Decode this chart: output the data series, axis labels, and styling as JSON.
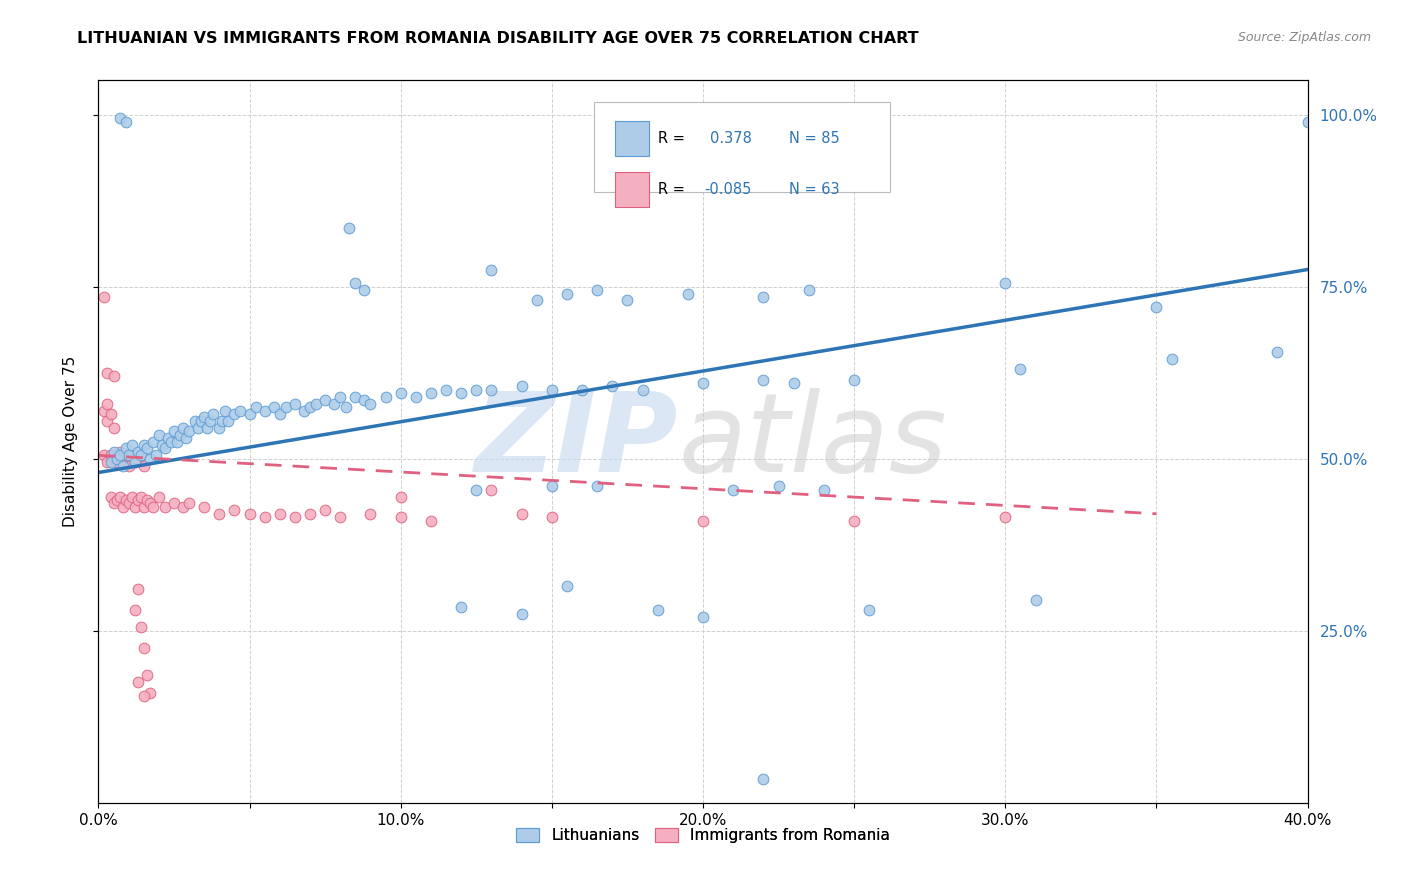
{
  "title": "LITHUANIAN VS IMMIGRANTS FROM ROMANIA DISABILITY AGE OVER 75 CORRELATION CHART",
  "source": "Source: ZipAtlas.com",
  "ylabel": "Disability Age Over 75",
  "legend_labels": [
    "Lithuanians",
    "Immigrants from Romania"
  ],
  "blue_color": "#aecce8",
  "blue_edge": "#5b9bd5",
  "pink_color": "#f4afc0",
  "pink_edge": "#e06080",
  "trendline_blue": "#2e75b6",
  "trendline_pink": "#e06080",
  "legend_text_color": "#2e75b6",
  "watermark_zip_color": "#c5d8ef",
  "watermark_atlas_color": "#c8c8c8",
  "blue_scatter": [
    [
      0.004,
      0.495
    ],
    [
      0.005,
      0.51
    ],
    [
      0.006,
      0.5
    ],
    [
      0.007,
      0.505
    ],
    [
      0.008,
      0.49
    ],
    [
      0.009,
      0.515
    ],
    [
      0.01,
      0.505
    ],
    [
      0.011,
      0.52
    ],
    [
      0.012,
      0.495
    ],
    [
      0.013,
      0.51
    ],
    [
      0.014,
      0.505
    ],
    [
      0.015,
      0.52
    ],
    [
      0.016,
      0.515
    ],
    [
      0.017,
      0.5
    ],
    [
      0.018,
      0.525
    ],
    [
      0.019,
      0.505
    ],
    [
      0.02,
      0.535
    ],
    [
      0.021,
      0.52
    ],
    [
      0.022,
      0.515
    ],
    [
      0.023,
      0.53
    ],
    [
      0.024,
      0.525
    ],
    [
      0.025,
      0.54
    ],
    [
      0.026,
      0.525
    ],
    [
      0.027,
      0.535
    ],
    [
      0.028,
      0.545
    ],
    [
      0.029,
      0.53
    ],
    [
      0.03,
      0.54
    ],
    [
      0.032,
      0.555
    ],
    [
      0.033,
      0.545
    ],
    [
      0.034,
      0.555
    ],
    [
      0.035,
      0.56
    ],
    [
      0.036,
      0.545
    ],
    [
      0.037,
      0.555
    ],
    [
      0.038,
      0.565
    ],
    [
      0.04,
      0.545
    ],
    [
      0.041,
      0.555
    ],
    [
      0.042,
      0.57
    ],
    [
      0.043,
      0.555
    ],
    [
      0.045,
      0.565
    ],
    [
      0.047,
      0.57
    ],
    [
      0.05,
      0.565
    ],
    [
      0.052,
      0.575
    ],
    [
      0.055,
      0.57
    ],
    [
      0.058,
      0.575
    ],
    [
      0.06,
      0.565
    ],
    [
      0.062,
      0.575
    ],
    [
      0.065,
      0.58
    ],
    [
      0.068,
      0.57
    ],
    [
      0.07,
      0.575
    ],
    [
      0.072,
      0.58
    ],
    [
      0.075,
      0.585
    ],
    [
      0.078,
      0.58
    ],
    [
      0.08,
      0.59
    ],
    [
      0.082,
      0.575
    ],
    [
      0.085,
      0.59
    ],
    [
      0.088,
      0.585
    ],
    [
      0.09,
      0.58
    ],
    [
      0.095,
      0.59
    ],
    [
      0.1,
      0.595
    ],
    [
      0.105,
      0.59
    ],
    [
      0.11,
      0.595
    ],
    [
      0.115,
      0.6
    ],
    [
      0.12,
      0.595
    ],
    [
      0.125,
      0.6
    ],
    [
      0.13,
      0.6
    ],
    [
      0.14,
      0.605
    ],
    [
      0.15,
      0.6
    ],
    [
      0.16,
      0.6
    ],
    [
      0.17,
      0.605
    ],
    [
      0.18,
      0.6
    ],
    [
      0.2,
      0.61
    ],
    [
      0.22,
      0.615
    ],
    [
      0.23,
      0.61
    ],
    [
      0.25,
      0.615
    ],
    [
      0.007,
      0.995
    ],
    [
      0.009,
      0.99
    ],
    [
      0.083,
      0.835
    ],
    [
      0.085,
      0.755
    ],
    [
      0.088,
      0.745
    ],
    [
      0.13,
      0.775
    ],
    [
      0.145,
      0.73
    ],
    [
      0.155,
      0.74
    ],
    [
      0.165,
      0.745
    ],
    [
      0.175,
      0.73
    ],
    [
      0.195,
      0.74
    ],
    [
      0.22,
      0.735
    ],
    [
      0.235,
      0.745
    ],
    [
      0.125,
      0.455
    ],
    [
      0.15,
      0.46
    ],
    [
      0.165,
      0.46
    ],
    [
      0.21,
      0.455
    ],
    [
      0.225,
      0.46
    ],
    [
      0.24,
      0.455
    ],
    [
      0.12,
      0.285
    ],
    [
      0.14,
      0.275
    ],
    [
      0.155,
      0.315
    ],
    [
      0.185,
      0.28
    ],
    [
      0.2,
      0.27
    ],
    [
      0.255,
      0.28
    ],
    [
      0.31,
      0.295
    ],
    [
      0.22,
      0.035
    ],
    [
      0.3,
      0.755
    ],
    [
      0.35,
      0.72
    ],
    [
      0.305,
      0.63
    ],
    [
      0.355,
      0.645
    ],
    [
      0.39,
      0.655
    ],
    [
      0.4,
      0.99
    ]
  ],
  "pink_scatter": [
    [
      0.002,
      0.505
    ],
    [
      0.003,
      0.495
    ],
    [
      0.004,
      0.505
    ],
    [
      0.005,
      0.5
    ],
    [
      0.006,
      0.495
    ],
    [
      0.007,
      0.51
    ],
    [
      0.008,
      0.495
    ],
    [
      0.009,
      0.505
    ],
    [
      0.01,
      0.49
    ],
    [
      0.011,
      0.505
    ],
    [
      0.012,
      0.495
    ],
    [
      0.013,
      0.5
    ],
    [
      0.014,
      0.505
    ],
    [
      0.015,
      0.49
    ],
    [
      0.002,
      0.57
    ],
    [
      0.003,
      0.555
    ],
    [
      0.004,
      0.565
    ],
    [
      0.005,
      0.545
    ],
    [
      0.002,
      0.735
    ],
    [
      0.003,
      0.625
    ],
    [
      0.005,
      0.62
    ],
    [
      0.003,
      0.58
    ],
    [
      0.004,
      0.445
    ],
    [
      0.005,
      0.435
    ],
    [
      0.006,
      0.44
    ],
    [
      0.007,
      0.445
    ],
    [
      0.008,
      0.43
    ],
    [
      0.009,
      0.44
    ],
    [
      0.01,
      0.435
    ],
    [
      0.011,
      0.445
    ],
    [
      0.012,
      0.43
    ],
    [
      0.013,
      0.44
    ],
    [
      0.014,
      0.445
    ],
    [
      0.015,
      0.43
    ],
    [
      0.016,
      0.44
    ],
    [
      0.017,
      0.435
    ],
    [
      0.018,
      0.43
    ],
    [
      0.02,
      0.445
    ],
    [
      0.022,
      0.43
    ],
    [
      0.025,
      0.435
    ],
    [
      0.028,
      0.43
    ],
    [
      0.03,
      0.435
    ],
    [
      0.035,
      0.43
    ],
    [
      0.04,
      0.42
    ],
    [
      0.045,
      0.425
    ],
    [
      0.05,
      0.42
    ],
    [
      0.055,
      0.415
    ],
    [
      0.06,
      0.42
    ],
    [
      0.065,
      0.415
    ],
    [
      0.07,
      0.42
    ],
    [
      0.075,
      0.425
    ],
    [
      0.08,
      0.415
    ],
    [
      0.09,
      0.42
    ],
    [
      0.1,
      0.415
    ],
    [
      0.11,
      0.41
    ],
    [
      0.14,
      0.42
    ],
    [
      0.15,
      0.415
    ],
    [
      0.2,
      0.41
    ],
    [
      0.25,
      0.41
    ],
    [
      0.3,
      0.415
    ],
    [
      0.012,
      0.28
    ],
    [
      0.013,
      0.31
    ],
    [
      0.014,
      0.255
    ],
    [
      0.015,
      0.225
    ],
    [
      0.016,
      0.185
    ],
    [
      0.017,
      0.16
    ],
    [
      0.013,
      0.175
    ],
    [
      0.015,
      0.155
    ],
    [
      0.1,
      0.445
    ],
    [
      0.13,
      0.455
    ]
  ],
  "xlim": [
    0.0,
    0.4
  ],
  "ylim": [
    0.0,
    1.05
  ],
  "xticks": [
    0.0,
    0.05,
    0.1,
    0.15,
    0.2,
    0.25,
    0.3,
    0.35,
    0.4
  ],
  "xtick_labels_show": [
    0.0,
    0.1,
    0.2,
    0.3,
    0.4
  ],
  "yticks": [
    0.25,
    0.5,
    0.75,
    1.0
  ],
  "blue_trend_x": [
    0.0,
    0.4
  ],
  "blue_trend_y": [
    0.48,
    0.775
  ],
  "pink_trend_x": [
    0.0,
    0.35
  ],
  "pink_trend_y": [
    0.505,
    0.42
  ]
}
